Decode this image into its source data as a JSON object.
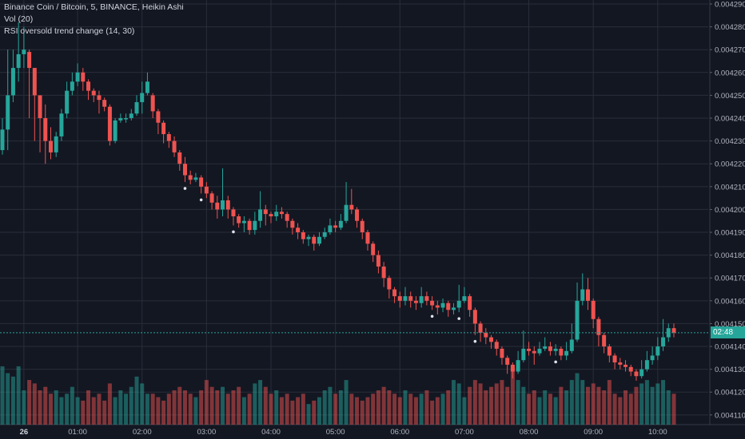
{
  "legend": {
    "symbol_line": "Binance Coin / Bitcoin, 5, BINANCE, Heikin Ashi",
    "vol_line": "Vol (20)",
    "indicator_line": "RSI oversold trend change (14, 30)"
  },
  "price_tag": {
    "label": "02:48",
    "color": "#26a69a"
  },
  "colors": {
    "up": "#26a69a",
    "down": "#ef5350",
    "up_volume": "#26a69a",
    "down_volume": "#ef5350",
    "background": "#131722",
    "grid": "#2a2e39",
    "marker": "#e0e3eb"
  },
  "chart_data": {
    "type": "candlestick",
    "x_ticks": [
      {
        "label": "26",
        "bold": true,
        "index": 4
      },
      {
        "label": "01:00",
        "index": 14
      },
      {
        "label": "02:00",
        "index": 26
      },
      {
        "label": "03:00",
        "index": 38
      },
      {
        "label": "04:00",
        "index": 50
      },
      {
        "label": "05:00",
        "index": 62
      },
      {
        "label": "06:00",
        "index": 74
      },
      {
        "label": "07:00",
        "index": 86
      },
      {
        "label": "08:00",
        "index": 98
      },
      {
        "label": "09:00",
        "index": 110
      },
      {
        "label": "10:00",
        "index": 122
      }
    ],
    "y_ticks": [
      "0.0042900",
      "0.0042800",
      "0.0042700",
      "0.0042600",
      "0.0042500",
      "0.0042400",
      "0.0042300",
      "0.0042200",
      "0.0042100",
      "0.0042000",
      "0.0041900",
      "0.0041800",
      "0.0041700",
      "0.0041600",
      "0.0041500",
      "0.0041400",
      "0.0041300",
      "0.0041200",
      "0.0041100"
    ],
    "y_range": [
      0.00410575,
      0.00429175
    ],
    "grid": true,
    "legend_position": "top-left",
    "candles": [
      {
        "o": 0.004226,
        "c": 0.004235,
        "h": 0.00424,
        "l": 0.004224,
        "v": 1.7
      },
      {
        "o": 0.004235,
        "c": 0.00425,
        "h": 0.00427,
        "l": 0.004226,
        "v": 1.5
      },
      {
        "o": 0.00425,
        "c": 0.004262,
        "h": 0.00427,
        "l": 0.004247,
        "v": 1.4
      },
      {
        "o": 0.004262,
        "c": 0.004268,
        "h": 0.004282,
        "l": 0.004256,
        "v": 1.7
      },
      {
        "o": 0.004268,
        "c": 0.00427,
        "h": 0.00428,
        "l": 0.004262,
        "v": 1.0
      },
      {
        "o": 0.004269,
        "c": 0.004262,
        "h": 0.00427,
        "l": 0.00424,
        "v": 1.3
      },
      {
        "o": 0.004262,
        "c": 0.00425,
        "h": 0.004262,
        "l": 0.00423,
        "v": 1.2
      },
      {
        "o": 0.00425,
        "c": 0.00424,
        "h": 0.00425,
        "l": 0.004225,
        "v": 1.0
      },
      {
        "o": 0.00424,
        "c": 0.00423,
        "h": 0.004246,
        "l": 0.00422,
        "v": 1.1
      },
      {
        "o": 0.00423,
        "c": 0.004225,
        "h": 0.004236,
        "l": 0.004222,
        "v": 0.9
      },
      {
        "o": 0.004225,
        "c": 0.004232,
        "h": 0.004234,
        "l": 0.004223,
        "v": 1.0
      },
      {
        "o": 0.004232,
        "c": 0.004242,
        "h": 0.004244,
        "l": 0.00423,
        "v": 0.8
      },
      {
        "o": 0.004242,
        "c": 0.004252,
        "h": 0.004256,
        "l": 0.00424,
        "v": 0.9
      },
      {
        "o": 0.004252,
        "c": 0.004256,
        "h": 0.00426,
        "l": 0.00425,
        "v": 1.1
      },
      {
        "o": 0.004256,
        "c": 0.00426,
        "h": 0.004264,
        "l": 0.004254,
        "v": 0.8
      },
      {
        "o": 0.00426,
        "c": 0.004256,
        "h": 0.004262,
        "l": 0.004252,
        "v": 0.7
      },
      {
        "o": 0.004256,
        "c": 0.004252,
        "h": 0.004257,
        "l": 0.004248,
        "v": 1.0
      },
      {
        "o": 0.004252,
        "c": 0.00425,
        "h": 0.004253,
        "l": 0.004247,
        "v": 0.8
      },
      {
        "o": 0.00425,
        "c": 0.004248,
        "h": 0.004252,
        "l": 0.004242,
        "v": 0.9
      },
      {
        "o": 0.004248,
        "c": 0.004245,
        "h": 0.004249,
        "l": 0.004243,
        "v": 0.7
      },
      {
        "o": 0.004245,
        "c": 0.00423,
        "h": 0.004246,
        "l": 0.004228,
        "v": 1.2
      },
      {
        "o": 0.00423,
        "c": 0.004239,
        "h": 0.00424,
        "l": 0.004229,
        "v": 0.8
      },
      {
        "o": 0.004239,
        "c": 0.00424,
        "h": 0.004242,
        "l": 0.004238,
        "v": 1.0
      },
      {
        "o": 0.00424,
        "c": 0.00424,
        "h": 0.004242,
        "l": 0.004238,
        "v": 0.9
      },
      {
        "o": 0.00424,
        "c": 0.004242,
        "h": 0.004244,
        "l": 0.004239,
        "v": 1.1
      },
      {
        "o": 0.004242,
        "c": 0.004247,
        "h": 0.00425,
        "l": 0.004241,
        "v": 1.4
      },
      {
        "o": 0.004247,
        "c": 0.004251,
        "h": 0.004256,
        "l": 0.004242,
        "v": 1.2
      },
      {
        "o": 0.004251,
        "c": 0.004256,
        "h": 0.00426,
        "l": 0.00425,
        "v": 0.9
      },
      {
        "o": 0.00425,
        "c": 0.004243,
        "h": 0.004251,
        "l": 0.00424,
        "v": 0.9
      },
      {
        "o": 0.004243,
        "c": 0.004238,
        "h": 0.004244,
        "l": 0.004233,
        "v": 0.8
      },
      {
        "o": 0.004238,
        "c": 0.004233,
        "h": 0.004239,
        "l": 0.004229,
        "v": 0.7
      },
      {
        "o": 0.004233,
        "c": 0.00423,
        "h": 0.004234,
        "l": 0.004227,
        "v": 0.9
      },
      {
        "o": 0.00423,
        "c": 0.004225,
        "h": 0.004232,
        "l": 0.004223,
        "v": 1.0
      },
      {
        "o": 0.004225,
        "c": 0.00422,
        "h": 0.004226,
        "l": 0.004217,
        "v": 1.1
      },
      {
        "o": 0.00422,
        "c": 0.004215,
        "h": 0.004223,
        "l": 0.004212,
        "v": 1.0
      },
      {
        "o": 0.004215,
        "c": 0.004213,
        "h": 0.004217,
        "l": 0.004211,
        "v": 0.9
      },
      {
        "o": 0.004213,
        "c": 0.004214,
        "h": 0.004216,
        "l": 0.004212,
        "v": 0.8
      },
      {
        "o": 0.004214,
        "c": 0.00421,
        "h": 0.004215,
        "l": 0.004207,
        "v": 1.0
      },
      {
        "o": 0.00421,
        "c": 0.004207,
        "h": 0.004212,
        "l": 0.004205,
        "v": 1.3
      },
      {
        "o": 0.004207,
        "c": 0.004203,
        "h": 0.004208,
        "l": 0.0042,
        "v": 1.1
      },
      {
        "o": 0.004203,
        "c": 0.0042,
        "h": 0.004206,
        "l": 0.004196,
        "v": 1.0
      },
      {
        "o": 0.0042,
        "c": 0.004204,
        "h": 0.004218,
        "l": 0.004197,
        "v": 1.1
      },
      {
        "o": 0.004204,
        "c": 0.0042,
        "h": 0.004206,
        "l": 0.004196,
        "v": 0.9
      },
      {
        "o": 0.0042,
        "c": 0.004197,
        "h": 0.004201,
        "l": 0.004193,
        "v": 1.0
      },
      {
        "o": 0.004197,
        "c": 0.004194,
        "h": 0.004198,
        "l": 0.004192,
        "v": 1.1
      },
      {
        "o": 0.004194,
        "c": 0.004195,
        "h": 0.004197,
        "l": 0.00419,
        "v": 0.8
      },
      {
        "o": 0.004195,
        "c": 0.004191,
        "h": 0.004196,
        "l": 0.004189,
        "v": 0.9
      },
      {
        "o": 0.004191,
        "c": 0.004195,
        "h": 0.004199,
        "l": 0.004189,
        "v": 1.2
      },
      {
        "o": 0.004195,
        "c": 0.0042,
        "h": 0.004208,
        "l": 0.004192,
        "v": 1.3
      },
      {
        "o": 0.0042,
        "c": 0.004198,
        "h": 0.004202,
        "l": 0.004193,
        "v": 1.1
      },
      {
        "o": 0.004198,
        "c": 0.004197,
        "h": 0.004199,
        "l": 0.004194,
        "v": 0.9
      },
      {
        "o": 0.004197,
        "c": 0.004199,
        "h": 0.004202,
        "l": 0.004195,
        "v": 1.0
      },
      {
        "o": 0.004199,
        "c": 0.004198,
        "h": 0.004201,
        "l": 0.004196,
        "v": 0.8
      },
      {
        "o": 0.004198,
        "c": 0.004195,
        "h": 0.004199,
        "l": 0.004192,
        "v": 0.9
      },
      {
        "o": 0.004195,
        "c": 0.004192,
        "h": 0.004196,
        "l": 0.004189,
        "v": 0.7
      },
      {
        "o": 0.004192,
        "c": 0.00419,
        "h": 0.004194,
        "l": 0.004187,
        "v": 0.8
      },
      {
        "o": 0.00419,
        "c": 0.004187,
        "h": 0.004191,
        "l": 0.004185,
        "v": 0.9
      },
      {
        "o": 0.004187,
        "c": 0.004188,
        "h": 0.004189,
        "l": 0.004184,
        "v": 0.6
      },
      {
        "o": 0.004188,
        "c": 0.004185,
        "h": 0.004189,
        "l": 0.004182,
        "v": 0.7
      },
      {
        "o": 0.004185,
        "c": 0.004188,
        "h": 0.00419,
        "l": 0.004184,
        "v": 0.8
      },
      {
        "o": 0.004188,
        "c": 0.00419,
        "h": 0.004192,
        "l": 0.004187,
        "v": 1.0
      },
      {
        "o": 0.00419,
        "c": 0.004193,
        "h": 0.004196,
        "l": 0.004189,
        "v": 1.1
      },
      {
        "o": 0.004193,
        "c": 0.004192,
        "h": 0.004195,
        "l": 0.00419,
        "v": 0.9
      },
      {
        "o": 0.004192,
        "c": 0.004195,
        "h": 0.004198,
        "l": 0.004191,
        "v": 1.0
      },
      {
        "o": 0.004195,
        "c": 0.004202,
        "h": 0.004212,
        "l": 0.004194,
        "v": 1.3
      },
      {
        "o": 0.004202,
        "c": 0.0042,
        "h": 0.004209,
        "l": 0.004198,
        "v": 0.9
      },
      {
        "o": 0.0042,
        "c": 0.004195,
        "h": 0.004201,
        "l": 0.004192,
        "v": 0.8
      },
      {
        "o": 0.004195,
        "c": 0.00419,
        "h": 0.004196,
        "l": 0.004187,
        "v": 0.7
      },
      {
        "o": 0.00419,
        "c": 0.004185,
        "h": 0.004191,
        "l": 0.004182,
        "v": 0.8
      },
      {
        "o": 0.004185,
        "c": 0.00418,
        "h": 0.004186,
        "l": 0.004177,
        "v": 0.9
      },
      {
        "o": 0.00418,
        "c": 0.004175,
        "h": 0.004182,
        "l": 0.004172,
        "v": 1.0
      },
      {
        "o": 0.004175,
        "c": 0.00417,
        "h": 0.004177,
        "l": 0.004166,
        "v": 1.1
      },
      {
        "o": 0.00417,
        "c": 0.004165,
        "h": 0.004171,
        "l": 0.004161,
        "v": 1.0
      },
      {
        "o": 0.004165,
        "c": 0.004162,
        "h": 0.004166,
        "l": 0.004159,
        "v": 0.9
      },
      {
        "o": 0.004162,
        "c": 0.00416,
        "h": 0.004164,
        "l": 0.004157,
        "v": 0.8
      },
      {
        "o": 0.00416,
        "c": 0.004162,
        "h": 0.004166,
        "l": 0.004158,
        "v": 1.0
      },
      {
        "o": 0.004162,
        "c": 0.00416,
        "h": 0.004164,
        "l": 0.004157,
        "v": 0.9
      },
      {
        "o": 0.00416,
        "c": 0.004159,
        "h": 0.004162,
        "l": 0.004156,
        "v": 0.8
      },
      {
        "o": 0.004159,
        "c": 0.004162,
        "h": 0.004166,
        "l": 0.004157,
        "v": 0.9
      },
      {
        "o": 0.004162,
        "c": 0.00416,
        "h": 0.004164,
        "l": 0.004158,
        "v": 1.0
      },
      {
        "o": 0.00416,
        "c": 0.004158,
        "h": 0.004162,
        "l": 0.004156,
        "v": 0.7
      },
      {
        "o": 0.004158,
        "c": 0.004157,
        "h": 0.00416,
        "l": 0.004154,
        "v": 0.8
      },
      {
        "o": 0.004157,
        "c": 0.004159,
        "h": 0.004161,
        "l": 0.004155,
        "v": 0.9
      },
      {
        "o": 0.004159,
        "c": 0.004156,
        "h": 0.00416,
        "l": 0.004153,
        "v": 1.0
      },
      {
        "o": 0.004156,
        "c": 0.004157,
        "h": 0.004159,
        "l": 0.004154,
        "v": 1.3
      },
      {
        "o": 0.004157,
        "c": 0.00416,
        "h": 0.004167,
        "l": 0.004155,
        "v": 1.2
      },
      {
        "o": 0.00416,
        "c": 0.004162,
        "h": 0.004166,
        "l": 0.004159,
        "v": 0.8
      },
      {
        "o": 0.004162,
        "c": 0.004156,
        "h": 0.004163,
        "l": 0.004153,
        "v": 1.1
      },
      {
        "o": 0.004156,
        "c": 0.00415,
        "h": 0.004157,
        "l": 0.004145,
        "v": 1.3
      },
      {
        "o": 0.00415,
        "c": 0.004146,
        "h": 0.004151,
        "l": 0.004142,
        "v": 1.2
      },
      {
        "o": 0.004146,
        "c": 0.004144,
        "h": 0.004148,
        "l": 0.004141,
        "v": 1.0
      },
      {
        "o": 0.004144,
        "c": 0.004142,
        "h": 0.004145,
        "l": 0.004139,
        "v": 1.1
      },
      {
        "o": 0.004142,
        "c": 0.004139,
        "h": 0.004143,
        "l": 0.004136,
        "v": 1.2
      },
      {
        "o": 0.004139,
        "c": 0.004135,
        "h": 0.00414,
        "l": 0.004132,
        "v": 1.3
      },
      {
        "o": 0.004135,
        "c": 0.004132,
        "h": 0.004136,
        "l": 0.004128,
        "v": 1.1
      },
      {
        "o": 0.004132,
        "c": 0.004129,
        "h": 0.004133,
        "l": 0.004126,
        "v": 1.7
      },
      {
        "o": 0.004129,
        "c": 0.004134,
        "h": 0.004138,
        "l": 0.004128,
        "v": 1.3
      },
      {
        "o": 0.004134,
        "c": 0.004139,
        "h": 0.004147,
        "l": 0.004133,
        "v": 1.1
      },
      {
        "o": 0.004139,
        "c": 0.004138,
        "h": 0.004142,
        "l": 0.004136,
        "v": 0.9
      },
      {
        "o": 0.004138,
        "c": 0.004137,
        "h": 0.00414,
        "l": 0.004132,
        "v": 1.0
      },
      {
        "o": 0.004137,
        "c": 0.004139,
        "h": 0.004142,
        "l": 0.004136,
        "v": 0.8
      },
      {
        "o": 0.004139,
        "c": 0.00414,
        "h": 0.004144,
        "l": 0.004138,
        "v": 1.0
      },
      {
        "o": 0.00414,
        "c": 0.004138,
        "h": 0.004142,
        "l": 0.004136,
        "v": 0.9
      },
      {
        "o": 0.004138,
        "c": 0.004139,
        "h": 0.004141,
        "l": 0.004136,
        "v": 0.8
      },
      {
        "o": 0.004139,
        "c": 0.004136,
        "h": 0.00414,
        "l": 0.004134,
        "v": 1.1
      },
      {
        "o": 0.004136,
        "c": 0.004138,
        "h": 0.004142,
        "l": 0.004134,
        "v": 1.0
      },
      {
        "o": 0.004138,
        "c": 0.004143,
        "h": 0.00415,
        "l": 0.004137,
        "v": 1.3
      },
      {
        "o": 0.004143,
        "c": 0.00416,
        "h": 0.004168,
        "l": 0.004142,
        "v": 1.5
      },
      {
        "o": 0.00416,
        "c": 0.004165,
        "h": 0.004172,
        "l": 0.004158,
        "v": 1.3
      },
      {
        "o": 0.004165,
        "c": 0.00416,
        "h": 0.00417,
        "l": 0.004156,
        "v": 1.1
      },
      {
        "o": 0.00416,
        "c": 0.004152,
        "h": 0.004161,
        "l": 0.004148,
        "v": 1.2
      },
      {
        "o": 0.004152,
        "c": 0.004145,
        "h": 0.004153,
        "l": 0.00414,
        "v": 1.1
      },
      {
        "o": 0.004145,
        "c": 0.00414,
        "h": 0.004146,
        "l": 0.004137,
        "v": 1.0
      },
      {
        "o": 0.00414,
        "c": 0.004136,
        "h": 0.004141,
        "l": 0.004133,
        "v": 1.3
      },
      {
        "o": 0.004136,
        "c": 0.004133,
        "h": 0.004137,
        "l": 0.00413,
        "v": 0.9
      },
      {
        "o": 0.004133,
        "c": 0.004132,
        "h": 0.004135,
        "l": 0.00413,
        "v": 0.8
      },
      {
        "o": 0.004132,
        "c": 0.004131,
        "h": 0.004134,
        "l": 0.004129,
        "v": 1.0
      },
      {
        "o": 0.004131,
        "c": 0.004129,
        "h": 0.004132,
        "l": 0.004127,
        "v": 0.9
      },
      {
        "o": 0.004129,
        "c": 0.004127,
        "h": 0.00413,
        "l": 0.004125,
        "v": 1.1
      },
      {
        "o": 0.004127,
        "c": 0.00413,
        "h": 0.004134,
        "l": 0.004126,
        "v": 1.2
      },
      {
        "o": 0.00413,
        "c": 0.004134,
        "h": 0.004138,
        "l": 0.004129,
        "v": 1.3
      },
      {
        "o": 0.004134,
        "c": 0.004136,
        "h": 0.00414,
        "l": 0.004132,
        "v": 1.1
      },
      {
        "o": 0.004136,
        "c": 0.00414,
        "h": 0.004144,
        "l": 0.004134,
        "v": 1.2
      },
      {
        "o": 0.00414,
        "c": 0.004144,
        "h": 0.004152,
        "l": 0.004138,
        "v": 1.3
      },
      {
        "o": 0.004144,
        "c": 0.004148,
        "h": 0.00415,
        "l": 0.004142,
        "v": 1.0
      },
      {
        "o": 0.004148,
        "c": 0.004146,
        "h": 0.00415,
        "l": 0.004144,
        "v": 0.9
      }
    ],
    "markers": [
      34,
      37,
      43,
      80,
      85,
      88,
      103
    ]
  }
}
